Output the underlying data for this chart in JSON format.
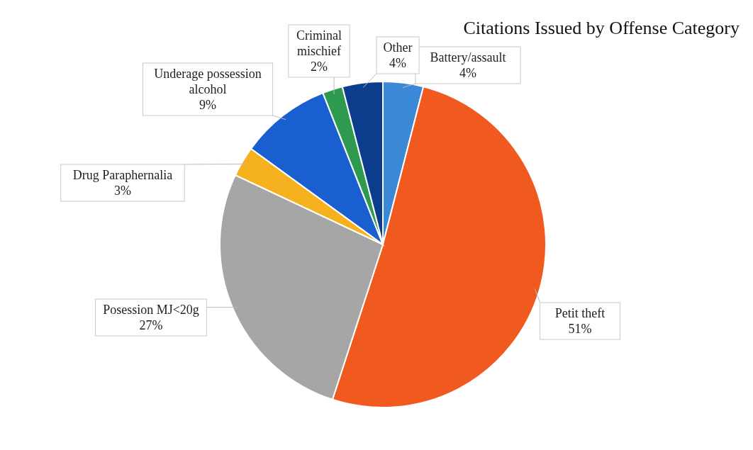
{
  "chart_data": {
    "type": "pie",
    "title": "Citations Issued by Offense Category",
    "categories": [
      "Battery/assault",
      "Petit theft",
      "Posession MJ<20g",
      "Drug Paraphernalia",
      "Underage possession alcohol",
      "Criminal mischief",
      "Other"
    ],
    "values": [
      4,
      51,
      27,
      3,
      9,
      2,
      4
    ],
    "value_labels": [
      "4%",
      "51%",
      "27%",
      "3%",
      "9%",
      "2%",
      "4%"
    ],
    "colors": [
      "#3a88d6",
      "#f05a1e",
      "#a6a6a6",
      "#f5b21e",
      "#1a5fcf",
      "#2e9a50",
      "#0b3d8c"
    ],
    "legend": false
  }
}
